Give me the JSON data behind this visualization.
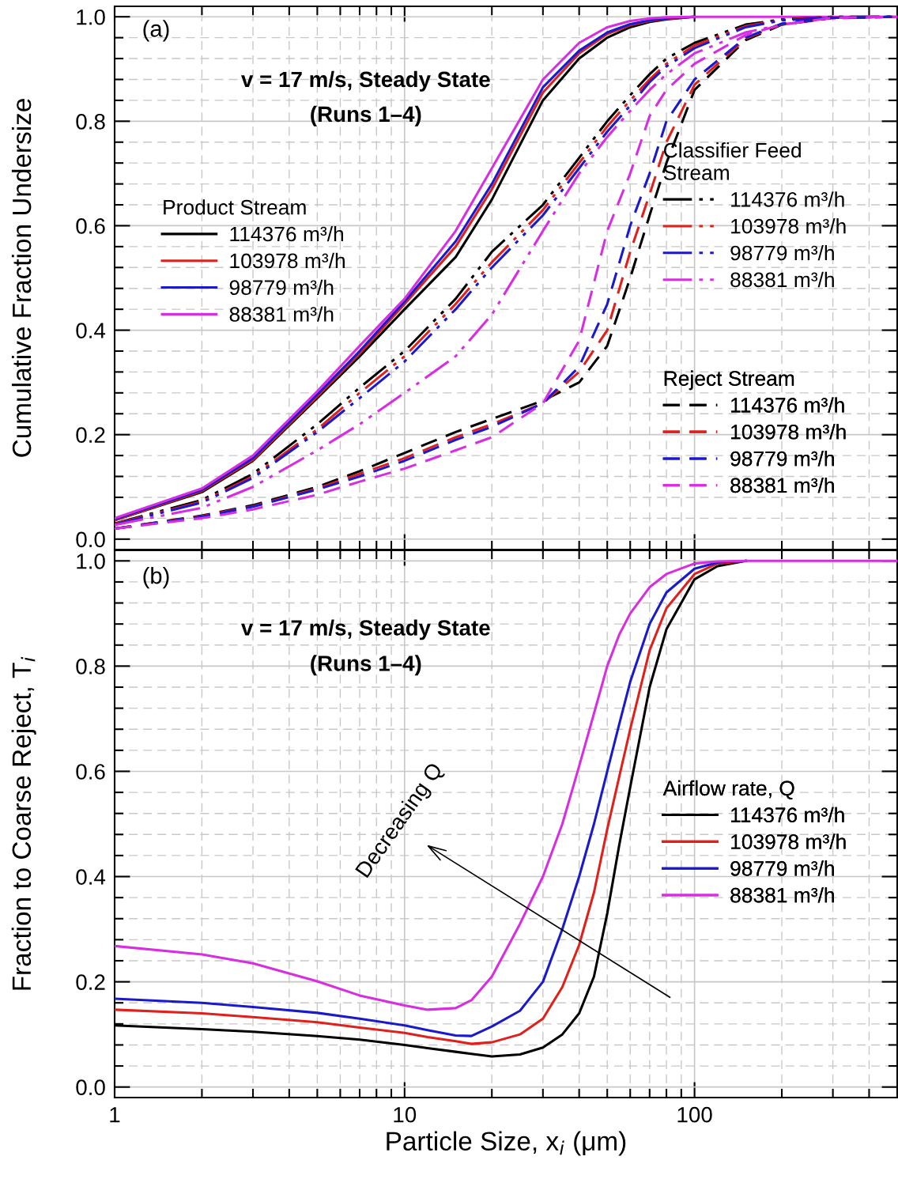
{
  "chart_data": [
    {
      "type": "line",
      "ylabel": "Cumulative Fraction Undersize",
      "log": "x",
      "grid": true,
      "tick_labels": "y",
      "legend": [
        "center left",
        "right",
        "bottom right"
      ],
      "legend_title": [
        "Product Stream",
        "Classifier Feed\nStream",
        "Reject Stream"
      ],
      "annotations": [
        "(a)",
        "v = 17 m/s, Steady State",
        "(Runs 1–4)"
      ],
      "xlim": [
        1,
        500
      ],
      "xticks": [
        1,
        10,
        100
      ],
      "ylim": [
        -0.02,
        1.02
      ],
      "yticks": [
        {
          "value": 0,
          "label": "0.0"
        },
        {
          "value": 0.2,
          "label": "0.2"
        },
        {
          "value": 0.4,
          "label": "0.4"
        },
        {
          "value": 0.6,
          "label": "0.6"
        },
        {
          "value": 0.8,
          "label": "0.8"
        },
        {
          "value": 1,
          "label": "1.0"
        }
      ],
      "x": [
        1,
        2,
        3,
        5,
        7,
        10,
        15,
        20,
        30,
        40,
        50,
        60,
        70,
        80,
        100,
        150,
        200,
        300,
        500
      ],
      "series": [
        {
          "name": "114376 m³/h",
          "color": "#000000",
          "line_style": "solid",
          "values": [
            0.036,
            0.09,
            0.15,
            0.27,
            0.35,
            0.44,
            0.54,
            0.65,
            0.84,
            0.92,
            0.96,
            0.98,
            0.99,
            0.995,
            1,
            null,
            null,
            null,
            null
          ]
        },
        {
          "name": "103978 m³/h",
          "color": "#e0201b",
          "line_style": "solid",
          "values": [
            0.036,
            0.092,
            0.152,
            0.273,
            0.355,
            0.45,
            0.56,
            0.67,
            0.855,
            0.93,
            0.967,
            0.984,
            0.992,
            0.996,
            1,
            null,
            null,
            null,
            null
          ]
        },
        {
          "name": "98779 m³/h",
          "color": "#1a1acc",
          "line_style": "solid",
          "values": [
            0.038,
            0.094,
            0.155,
            0.277,
            0.36,
            0.455,
            0.57,
            0.68,
            0.865,
            0.935,
            0.97,
            0.986,
            0.993,
            0.997,
            1,
            null,
            null,
            null,
            null
          ]
        },
        {
          "name": "88381 m³/h",
          "color": "#d62ee0",
          "line_style": "solid",
          "values": [
            0.04,
            0.097,
            0.16,
            0.283,
            0.37,
            0.46,
            0.59,
            0.71,
            0.88,
            0.95,
            0.98,
            0.992,
            0.997,
            0.999,
            1,
            1,
            1,
            1,
            1
          ]
        },
        {
          "name": "114376 m³/h",
          "color": "#000000",
          "line_style": "dashdotdot",
          "values": [
            0.03,
            0.075,
            0.125,
            0.22,
            0.29,
            0.36,
            0.46,
            0.55,
            0.64,
            0.73,
            0.8,
            0.85,
            0.89,
            0.92,
            0.95,
            0.985,
            0.995,
            1,
            1
          ]
        },
        {
          "name": "103978 m³/h",
          "color": "#e0201b",
          "line_style": "dashdotdot",
          "values": [
            0.029,
            0.072,
            0.12,
            0.21,
            0.28,
            0.35,
            0.45,
            0.53,
            0.63,
            0.72,
            0.79,
            0.84,
            0.88,
            0.91,
            0.945,
            0.982,
            0.994,
            1,
            1
          ]
        },
        {
          "name": "98779 m³/h",
          "color": "#1a1acc",
          "line_style": "dashdotdot",
          "values": [
            0.028,
            0.07,
            0.117,
            0.205,
            0.27,
            0.34,
            0.44,
            0.52,
            0.62,
            0.71,
            0.78,
            0.83,
            0.875,
            0.905,
            0.94,
            0.98,
            0.993,
            0.999,
            1
          ]
        },
        {
          "name": "88381 m³/h",
          "color": "#d62ee0",
          "line_style": "dashdotdot",
          "values": [
            0.027,
            0.06,
            0.1,
            0.17,
            0.22,
            0.28,
            0.35,
            0.43,
            0.59,
            0.7,
            0.77,
            0.82,
            0.86,
            0.89,
            0.93,
            0.97,
            0.985,
            0.997,
            1
          ]
        },
        {
          "name": "114376 m³/h",
          "color": "#000000",
          "line_style": "dashed",
          "values": [
            0.02,
            0.045,
            0.065,
            0.1,
            0.13,
            0.165,
            0.205,
            0.23,
            0.265,
            0.3,
            0.37,
            0.5,
            0.62,
            0.72,
            0.86,
            0.955,
            0.985,
            0.998,
            1
          ]
        },
        {
          "name": "103978 m³/h",
          "color": "#e0201b",
          "line_style": "dashed",
          "values": [
            0.02,
            0.044,
            0.063,
            0.097,
            0.125,
            0.155,
            0.195,
            0.22,
            0.26,
            0.32,
            0.4,
            0.55,
            0.66,
            0.76,
            0.87,
            0.958,
            0.986,
            0.998,
            1
          ]
        },
        {
          "name": "98779 m³/h",
          "color": "#1a1acc",
          "line_style": "dashed",
          "values": [
            0.02,
            0.043,
            0.062,
            0.095,
            0.12,
            0.15,
            0.19,
            0.215,
            0.26,
            0.33,
            0.45,
            0.6,
            0.7,
            0.8,
            0.88,
            0.96,
            0.987,
            0.998,
            1
          ]
        },
        {
          "name": "88381 m³/h",
          "color": "#d62ee0",
          "line_style": "dashed",
          "values": [
            0.02,
            0.04,
            0.057,
            0.085,
            0.11,
            0.135,
            0.17,
            0.195,
            0.26,
            0.38,
            0.59,
            0.7,
            0.81,
            0.86,
            0.91,
            0.965,
            0.985,
            0.998,
            1
          ]
        }
      ]
    },
    {
      "type": "line",
      "xlabel": "Particle Size, x$_{i}$ (μm)",
      "ylabel": "Fraction to Coarse Reject, T$_{i}$",
      "log": "x",
      "grid": true,
      "legend": "center right",
      "legend_title": "Airflow rate, Q",
      "annotations": [
        "(b)",
        "v = 17 m/s, Steady State",
        "(Runs 1–4)",
        "Decreasing Q"
      ],
      "xlim": [
        1,
        500
      ],
      "xticks": [
        1,
        10,
        100
      ],
      "ylim": [
        -0.02,
        1.02
      ],
      "yticks": [
        {
          "value": 0,
          "label": "0.0"
        },
        {
          "value": 0.2,
          "label": "0.2"
        },
        {
          "value": 0.4,
          "label": "0.4"
        },
        {
          "value": 0.6,
          "label": "0.6"
        },
        {
          "value": 0.8,
          "label": "0.8"
        },
        {
          "value": 1,
          "label": "1.0"
        }
      ],
      "x": [
        1,
        2,
        3,
        5,
        7,
        10,
        12,
        15,
        17,
        20,
        25,
        30,
        35,
        40,
        45,
        50,
        55,
        60,
        70,
        80,
        100,
        120,
        150,
        200,
        300,
        500
      ],
      "series": [
        {
          "name": "114376 m³/h",
          "color": "#000000",
          "values": [
            0.117,
            0.11,
            0.105,
            0.097,
            0.09,
            0.08,
            0.074,
            0.067,
            0.063,
            0.058,
            0.062,
            0.075,
            0.1,
            0.14,
            0.21,
            0.33,
            0.46,
            0.57,
            0.76,
            0.87,
            0.965,
            0.99,
            1,
            null,
            null,
            null
          ]
        },
        {
          "name": "103978 m³/h",
          "color": "#e0201b",
          "values": [
            0.147,
            0.14,
            0.133,
            0.123,
            0.113,
            0.103,
            0.095,
            0.087,
            0.082,
            0.085,
            0.1,
            0.13,
            0.19,
            0.27,
            0.37,
            0.49,
            0.59,
            0.68,
            0.83,
            0.91,
            0.975,
            0.995,
            1,
            null,
            null,
            null
          ]
        },
        {
          "name": "98779 m³/h",
          "color": "#1a1acc",
          "values": [
            0.168,
            0.16,
            0.152,
            0.141,
            0.13,
            0.117,
            0.108,
            0.098,
            0.097,
            0.115,
            0.145,
            0.2,
            0.3,
            0.4,
            0.5,
            0.6,
            0.69,
            0.77,
            0.88,
            0.94,
            0.985,
            0.997,
            1,
            null,
            null,
            null
          ]
        },
        {
          "name": "88381 m³/h",
          "color": "#d62ee0",
          "values": [
            0.268,
            0.252,
            0.235,
            0.201,
            0.174,
            0.155,
            0.147,
            0.15,
            0.165,
            0.21,
            0.31,
            0.4,
            0.5,
            0.61,
            0.71,
            0.8,
            0.86,
            0.9,
            0.95,
            0.975,
            0.995,
            0.999,
            1,
            1,
            1,
            1
          ]
        }
      ]
    }
  ]
}
